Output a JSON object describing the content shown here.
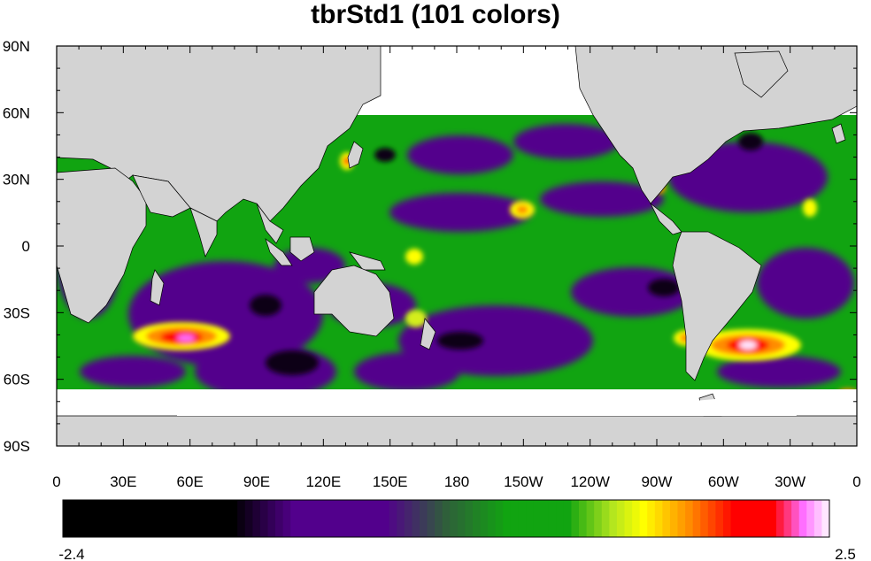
{
  "title": "tbrStd1 (101 colors)",
  "map": {
    "lon_labels": [
      "0",
      "30E",
      "60E",
      "90E",
      "120E",
      "150E",
      "180",
      "150W",
      "120W",
      "90W",
      "60W",
      "30W",
      "0"
    ],
    "lat_labels": [
      "90N",
      "60N",
      "30N",
      "0",
      "30S",
      "60S",
      "90S"
    ],
    "colors": {
      "land": "#d3d3d3",
      "missing": "#ffffff",
      "low": "#000000",
      "purple": "#52008c",
      "green": "#11a411",
      "yellow": "#ffff00",
      "orange": "#ff8c00",
      "red": "#ff0000",
      "pink": "#ff6eff",
      "high": "#ffe6ff"
    }
  },
  "colorbar": {
    "min_label": "-2.4",
    "max_label": "2.5",
    "n_colors": 101
  }
}
